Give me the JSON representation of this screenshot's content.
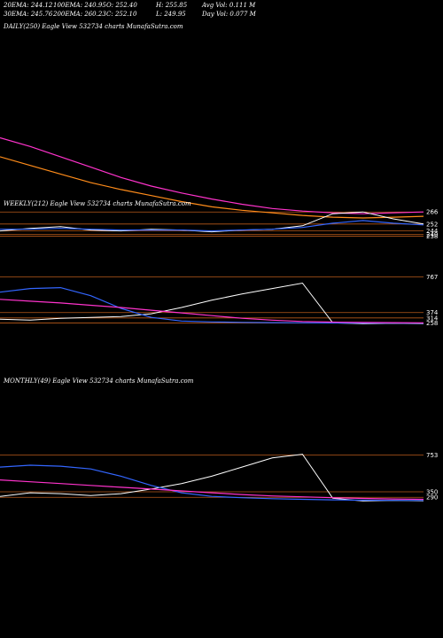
{
  "stats": {
    "ema20": "20EMA: 244.12",
    "ema100": "100EMA: 240.95",
    "open": "O: 252.40",
    "high": "H: 255.85",
    "avg_vol": "Avg Vol: 0.111 M",
    "ema30": "30EMA: 245.76",
    "ema200": "200EMA: 260.23",
    "close": "C: 252.10",
    "low": "L: 249.95",
    "day_vol": "Day Vol: 0.077 M"
  },
  "colors": {
    "background": "#000000",
    "price": "#ffffff",
    "ema_pink": "#ff33cc",
    "ema_blue": "#3366ff",
    "ema_orange": "#ff8c1a",
    "ema_tan": "#c8a060",
    "level_line": "#b85a1a"
  },
  "chart_data": [
    {
      "type": "line",
      "title": "DAILY(250) Eagle  View  532734  charts MunafaSutra.com",
      "y_labels": [
        "266",
        "252",
        "244",
        "240",
        "238"
      ],
      "series": [
        {
          "color": "#ff33cc",
          "values": [
            352,
            342,
            330,
            318,
            306,
            296,
            288,
            281,
            275,
            270,
            267,
            265,
            264,
            265,
            266
          ]
        },
        {
          "color": "#ff8c1a",
          "values": [
            330,
            320,
            310,
            300,
            292,
            285,
            278,
            272,
            268,
            265,
            262,
            260,
            259,
            260,
            261
          ]
        },
        {
          "color": "#ffffff",
          "values": [
            244,
            247,
            249,
            245,
            244,
            246,
            245,
            243,
            245,
            246,
            250,
            264,
            266,
            258,
            252
          ]
        },
        {
          "color": "#3366ff",
          "values": [
            246,
            246,
            247,
            246,
            245,
            245,
            245,
            244,
            245,
            246,
            248,
            253,
            256,
            253,
            251
          ]
        }
      ]
    },
    {
      "type": "line",
      "title": "WEEKLY(212) Eagle  View  532734  charts MunafaSutra.com",
      "y_labels": [
        "767",
        "374",
        "314",
        "258"
      ],
      "series": [
        {
          "color": "#ffffff",
          "values": [
            300,
            290,
            310,
            320,
            330,
            360,
            430,
            510,
            580,
            640,
            700,
            260,
            250,
            255,
            252
          ]
        },
        {
          "color": "#3366ff",
          "values": [
            600,
            640,
            650,
            560,
            420,
            320,
            280,
            270,
            265,
            262,
            260,
            258,
            257,
            257,
            256
          ]
        },
        {
          "color": "#ff33cc",
          "values": [
            520,
            500,
            480,
            455,
            430,
            400,
            370,
            340,
            310,
            290,
            275,
            268,
            264,
            262,
            260
          ]
        }
      ]
    },
    {
      "type": "line",
      "title": "MONTHLY(49) Eagle  View  532734  charts MunafaSutra.com",
      "y_labels": [
        "753",
        "350",
        "290"
      ],
      "series": [
        {
          "color": "#ffffff",
          "values": [
            300,
            340,
            330,
            310,
            330,
            380,
            440,
            520,
            620,
            720,
            760,
            280,
            250,
            255,
            252
          ]
        },
        {
          "color": "#3366ff",
          "values": [
            620,
            640,
            630,
            600,
            520,
            420,
            340,
            300,
            285,
            275,
            268,
            262,
            258,
            256,
            255
          ]
        },
        {
          "color": "#ff33cc",
          "values": [
            480,
            460,
            440,
            420,
            400,
            380,
            360,
            340,
            320,
            305,
            295,
            285,
            278,
            272,
            268
          ]
        }
      ]
    }
  ]
}
